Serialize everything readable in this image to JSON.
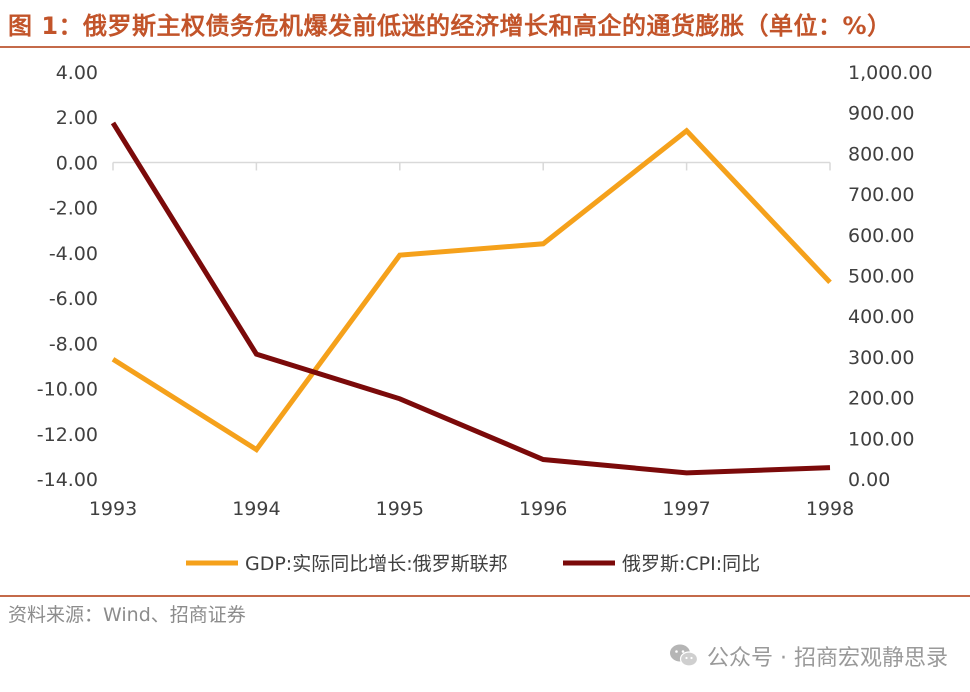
{
  "header": {
    "title": "图 1：俄罗斯主权债务危机爆发前低迷的经济增长和高企的通货膨胀（单位：%）"
  },
  "footer": {
    "source": "资料来源：Wind、招商证券",
    "watermark": "公众号 · 招商宏观静思录"
  },
  "colors": {
    "title": "#c2542a",
    "rule": "#c46a4a",
    "gdp": "#f5a11b",
    "cpi": "#7b0a0a",
    "axis": "#d9d9d9",
    "text": "#404040"
  },
  "chart_data": {
    "type": "line",
    "title": "",
    "categories": [
      "1993",
      "1994",
      "1995",
      "1996",
      "1997",
      "1998"
    ],
    "y_left": {
      "min": -14,
      "max": 4,
      "ticks": [
        4,
        2,
        0,
        -2,
        -4,
        -6,
        -8,
        -10,
        -12,
        -14
      ],
      "tick_labels": [
        "4.00",
        "2.00",
        "0.00",
        "-2.00",
        "-4.00",
        "-6.00",
        "-8.00",
        "-10.00",
        "-12.00",
        "-14.00"
      ]
    },
    "y_right": {
      "min": 0,
      "max": 1000,
      "ticks": [
        1000,
        900,
        800,
        700,
        600,
        500,
        400,
        300,
        200,
        100,
        0
      ],
      "tick_labels": [
        "1,000.00",
        "900.00",
        "800.00",
        "700.00",
        "600.00",
        "500.00",
        "400.00",
        "300.00",
        "200.00",
        "100.00",
        "0.00"
      ]
    },
    "series": [
      {
        "name": "GDP:实际同比增长:俄罗斯联邦",
        "axis": "left",
        "color": "#f5a11b",
        "values": [
          -8.7,
          -12.7,
          -4.1,
          -3.6,
          1.4,
          -5.3
        ]
      },
      {
        "name": "俄罗斯:CPI:同比",
        "axis": "right",
        "color": "#7b0a0a",
        "values": [
          875,
          307,
          197,
          48,
          15,
          28
        ]
      }
    ],
    "legend": {
      "position": "bottom-center",
      "entries": [
        "GDP:实际同比增长:俄罗斯联邦",
        "俄罗斯:CPI:同比"
      ]
    },
    "grid": false
  }
}
